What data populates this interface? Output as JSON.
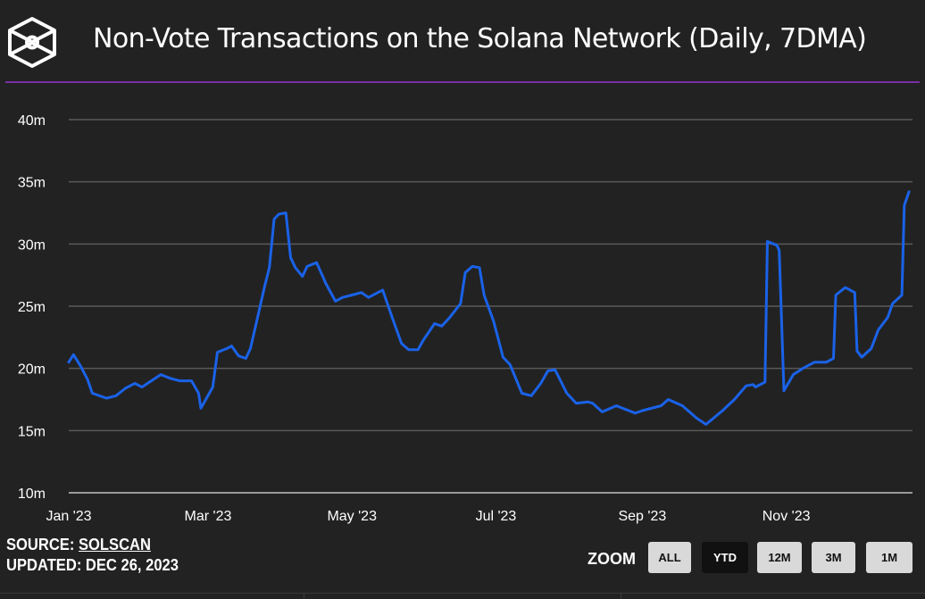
{
  "header": {
    "title": "Non-Vote Transactions on the Solana Network (Daily, 7DMA)",
    "logo": "cube-logo"
  },
  "footer": {
    "source_label": "SOURCE:",
    "source_link": "SOLSCAN",
    "updated": "UPDATED: DEC 26, 2023",
    "zoom_label": "ZOOM",
    "zoom_buttons": [
      {
        "label": "ALL",
        "active": false
      },
      {
        "label": "YTD",
        "active": true
      },
      {
        "label": "12M",
        "active": false
      },
      {
        "label": "3M",
        "active": false
      },
      {
        "label": "1M",
        "active": false
      }
    ]
  },
  "colors": {
    "line": "#1a62e8",
    "accent_rule": "#7a2ea6",
    "background": "#222222",
    "grid": "#5a5a5a"
  },
  "chart_data": {
    "type": "line",
    "title": "Non-Vote Transactions on the Solana Network (Daily, 7DMA)",
    "xlabel": "",
    "ylabel": "",
    "xlim": [
      "2023-01-01",
      "2023-12-26"
    ],
    "ylim": [
      10,
      40
    ],
    "grid": true,
    "x_ticks": [
      {
        "date": "2023-01-01",
        "label": "Jan '23"
      },
      {
        "date": "2023-03-01",
        "label": "Mar '23"
      },
      {
        "date": "2023-05-01",
        "label": "May '23"
      },
      {
        "date": "2023-07-01",
        "label": "Jul '23"
      },
      {
        "date": "2023-09-01",
        "label": "Sep '23"
      },
      {
        "date": "2023-11-01",
        "label": "Nov '23"
      }
    ],
    "y_ticks": [
      {
        "value": 10,
        "label": "10m"
      },
      {
        "value": 15,
        "label": "15m"
      },
      {
        "value": 20,
        "label": "20m"
      },
      {
        "value": 25,
        "label": "25m"
      },
      {
        "value": 30,
        "label": "30m"
      },
      {
        "value": 35,
        "label": "35m"
      },
      {
        "value": 40,
        "label": "40m"
      }
    ],
    "series": [
      {
        "points": [
          [
            "2023-01-01",
            20.5
          ],
          [
            "2023-01-03",
            21.1
          ],
          [
            "2023-01-06",
            20.2
          ],
          [
            "2023-01-09",
            19.1
          ],
          [
            "2023-01-11",
            18.0
          ],
          [
            "2023-01-17",
            17.6
          ],
          [
            "2023-01-21",
            17.8
          ],
          [
            "2023-01-25",
            18.4
          ],
          [
            "2023-01-29",
            18.8
          ],
          [
            "2023-02-01",
            18.5
          ],
          [
            "2023-02-05",
            19.0
          ],
          [
            "2023-02-09",
            19.5
          ],
          [
            "2023-02-13",
            19.2
          ],
          [
            "2023-02-17",
            19.0
          ],
          [
            "2023-02-22",
            19.0
          ],
          [
            "2023-02-25",
            18.0
          ],
          [
            "2023-02-26",
            16.8
          ],
          [
            "2023-03-03",
            18.5
          ],
          [
            "2023-03-05",
            21.3
          ],
          [
            "2023-03-09",
            21.6
          ],
          [
            "2023-03-11",
            21.8
          ],
          [
            "2023-03-14",
            21.0
          ],
          [
            "2023-03-17",
            20.8
          ],
          [
            "2023-03-19",
            21.6
          ],
          [
            "2023-03-22",
            24.1
          ],
          [
            "2023-03-25",
            26.6
          ],
          [
            "2023-03-27",
            28.1
          ],
          [
            "2023-03-29",
            32.0
          ],
          [
            "2023-03-31",
            32.4
          ],
          [
            "2023-04-03",
            32.5
          ],
          [
            "2023-04-05",
            28.9
          ],
          [
            "2023-04-07",
            28.1
          ],
          [
            "2023-04-10",
            27.4
          ],
          [
            "2023-04-12",
            28.2
          ],
          [
            "2023-04-16",
            28.5
          ],
          [
            "2023-04-20",
            26.8
          ],
          [
            "2023-04-24",
            25.4
          ],
          [
            "2023-04-27",
            25.7
          ],
          [
            "2023-05-01",
            25.9
          ],
          [
            "2023-05-05",
            26.1
          ],
          [
            "2023-05-08",
            25.7
          ],
          [
            "2023-05-14",
            26.3
          ],
          [
            "2023-05-18",
            24.1
          ],
          [
            "2023-05-22",
            22.0
          ],
          [
            "2023-05-25",
            21.5
          ],
          [
            "2023-05-29",
            21.5
          ],
          [
            "2023-05-31",
            22.2
          ],
          [
            "2023-06-05",
            23.6
          ],
          [
            "2023-06-08",
            23.4
          ],
          [
            "2023-06-11",
            24.0
          ],
          [
            "2023-06-16",
            25.2
          ],
          [
            "2023-06-18",
            27.7
          ],
          [
            "2023-06-21",
            28.2
          ],
          [
            "2023-06-24",
            28.1
          ],
          [
            "2023-06-26",
            25.9
          ],
          [
            "2023-06-30",
            23.8
          ],
          [
            "2023-07-04",
            20.9
          ],
          [
            "2023-07-07",
            20.3
          ],
          [
            "2023-07-12",
            18.0
          ],
          [
            "2023-07-16",
            17.8
          ],
          [
            "2023-07-20",
            18.8
          ],
          [
            "2023-07-23",
            19.8
          ],
          [
            "2023-07-26",
            19.9
          ],
          [
            "2023-07-31",
            18.0
          ],
          [
            "2023-08-04",
            17.2
          ],
          [
            "2023-08-09",
            17.3
          ],
          [
            "2023-08-11",
            17.2
          ],
          [
            "2023-08-15",
            16.5
          ],
          [
            "2023-08-21",
            17.0
          ],
          [
            "2023-08-29",
            16.4
          ],
          [
            "2023-09-01",
            16.6
          ],
          [
            "2023-09-09",
            17.0
          ],
          [
            "2023-09-12",
            17.5
          ],
          [
            "2023-09-18",
            17.0
          ],
          [
            "2023-09-24",
            16.0
          ],
          [
            "2023-09-28",
            15.5
          ],
          [
            "2023-10-05",
            16.6
          ],
          [
            "2023-10-10",
            17.5
          ],
          [
            "2023-10-15",
            18.6
          ],
          [
            "2023-10-18",
            18.7
          ],
          [
            "2023-10-19",
            18.5
          ],
          [
            "2023-10-23",
            18.9
          ],
          [
            "2023-10-24",
            30.2
          ],
          [
            "2023-10-28",
            29.9
          ],
          [
            "2023-10-29",
            29.5
          ],
          [
            "2023-10-31",
            18.2
          ],
          [
            "2023-11-04",
            19.5
          ],
          [
            "2023-11-08",
            20.0
          ],
          [
            "2023-11-13",
            20.5
          ],
          [
            "2023-11-18",
            20.5
          ],
          [
            "2023-11-21",
            20.8
          ],
          [
            "2023-11-22",
            25.9
          ],
          [
            "2023-11-26",
            26.5
          ],
          [
            "2023-11-30",
            26.1
          ],
          [
            "2023-12-01",
            21.4
          ],
          [
            "2023-12-03",
            20.9
          ],
          [
            "2023-12-07",
            21.6
          ],
          [
            "2023-12-10",
            23.1
          ],
          [
            "2023-12-14",
            24.1
          ],
          [
            "2023-12-16",
            25.2
          ],
          [
            "2023-12-20",
            25.9
          ],
          [
            "2023-12-21",
            33.1
          ],
          [
            "2023-12-23",
            34.2
          ]
        ]
      }
    ]
  }
}
